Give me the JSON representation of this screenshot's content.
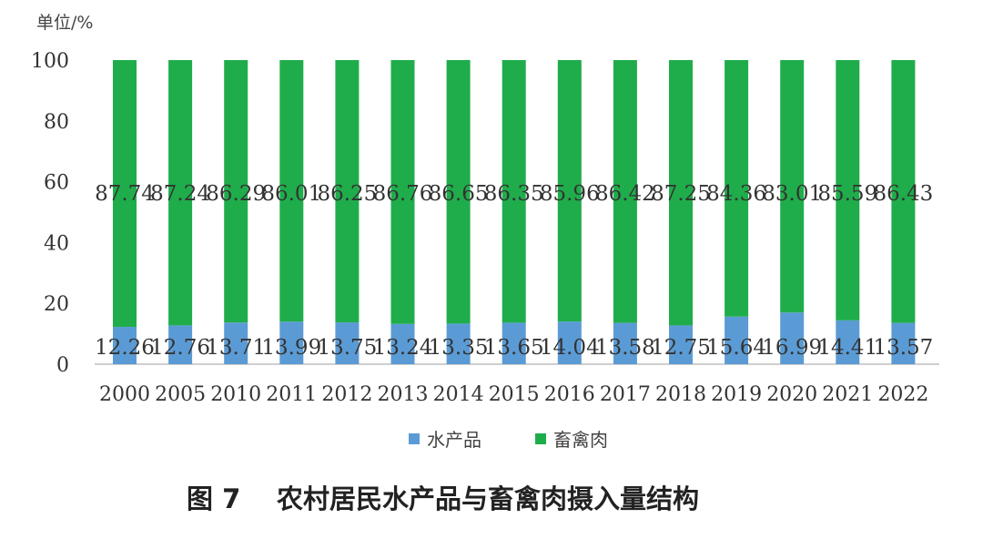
{
  "chart_data": {
    "type": "bar",
    "stacked": true,
    "unit_label": "单位/%",
    "categories": [
      "2000",
      "2005",
      "2010",
      "2011",
      "2012",
      "2013",
      "2014",
      "2015",
      "2016",
      "2017",
      "2018",
      "2019",
      "2020",
      "2021",
      "2022"
    ],
    "series": [
      {
        "name": "水产品",
        "color": "#5b9bd5",
        "values": [
          12.26,
          12.76,
          13.71,
          13.99,
          13.75,
          13.24,
          13.35,
          13.65,
          14.04,
          13.58,
          12.75,
          15.64,
          16.99,
          14.41,
          13.57
        ]
      },
      {
        "name": "畜禽肉",
        "color": "#1fad4b",
        "values": [
          87.74,
          87.24,
          86.29,
          86.01,
          86.25,
          86.76,
          86.65,
          86.35,
          85.96,
          86.42,
          87.25,
          84.36,
          83.01,
          85.59,
          86.43
        ]
      }
    ],
    "ylim": [
      0,
      100
    ],
    "yticks": [
      0,
      20,
      40,
      60,
      80,
      100
    ],
    "grid": false,
    "legend_position": "bottom"
  },
  "caption": {
    "figure_number": "图 7",
    "title": "农村居民水产品与畜禽肉摄入量结构"
  }
}
